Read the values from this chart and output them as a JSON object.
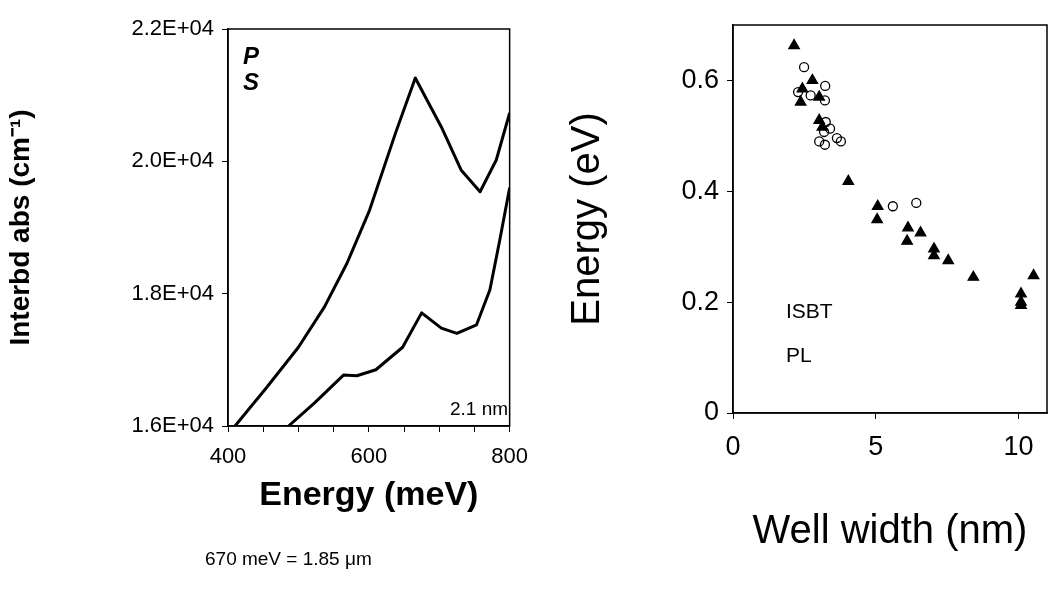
{
  "chart_data": [
    {
      "type": "line",
      "xlabel": "Energy (meV)",
      "ylabel": "Interbd abs (cm⁻¹)",
      "xlim": [
        400,
        800
      ],
      "ylim": [
        16000,
        22000
      ],
      "xticks": [
        400,
        {
          "value": 450,
          "label": null
        },
        {
          "value": 500,
          "label": null
        },
        {
          "value": 550,
          "label": null
        },
        600,
        {
          "value": 650,
          "label": null
        },
        {
          "value": 700,
          "label": null
        },
        {
          "value": 750,
          "label": null
        },
        800
      ],
      "yticks": [
        {
          "value": 16000,
          "label": "1.6E+04"
        },
        {
          "value": 18000,
          "label": "1.8E+04"
        },
        {
          "value": 20000,
          "label": "2.0E+04"
        },
        {
          "value": 22000,
          "label": "2.2E+04"
        }
      ],
      "grid": false,
      "legend": false,
      "marker": "none",
      "line_style": "solid",
      "annotations": [
        "P",
        "S",
        "2.1 nm",
        "670 meV = 1.85 μm"
      ],
      "series": [
        {
          "color": "#000000",
          "x": [
            410,
            454,
            500,
            537,
            569,
            601,
            638,
            666,
            703,
            731,
            758,
            781,
            800
          ],
          "values": [
            16000,
            16570,
            17190,
            17800,
            18460,
            19260,
            20430,
            21260,
            20520,
            19870,
            19540,
            20020,
            20730
          ]
        },
        {
          "color": "#000000",
          "x": [
            486,
            523,
            564,
            583,
            610,
            648,
            675,
            703,
            725,
            753,
            772,
            786,
            800
          ],
          "values": [
            16000,
            16350,
            16770,
            16760,
            16850,
            17190,
            17710,
            17480,
            17400,
            17530,
            18060,
            18810,
            19600
          ]
        }
      ]
    },
    {
      "type": "scatter",
      "xlabel": "Well width (nm)",
      "ylabel": "Energy (eV)",
      "xlim": [
        0,
        11
      ],
      "ylim": [
        0,
        0.7
      ],
      "xticks": [
        0,
        5,
        10
      ],
      "yticks": [
        0,
        0.2,
        0.4,
        0.6
      ],
      "grid": false,
      "legend": false,
      "annotations": [
        "ISBT",
        "PL"
      ],
      "series": [
        {
          "color": "#000000",
          "marker": "triangle",
          "x": [
            2.14,
            2.78,
            2.43,
            2.37,
            3.02,
            3.02,
            3.13,
            4.04,
            5.07,
            5.05,
            6.13,
            6.1,
            6.57,
            7.04,
            7.04,
            7.54,
            8.42,
            10.09,
            10.09,
            10.09,
            10.53
          ],
          "values": [
            0.663,
            0.6,
            0.585,
            0.561,
            0.57,
            0.528,
            0.516,
            0.418,
            0.373,
            0.349,
            0.334,
            0.31,
            0.325,
            0.296,
            0.284,
            0.275,
            0.245,
            0.215,
            0.2,
            0.194,
            0.248
          ]
        },
        {
          "color": "#000000",
          "marker": "circle",
          "x": [
            2.49,
            2.28,
            2.72,
            3.23,
            3.22,
            3.25,
            3.4,
            3.19,
            3.02,
            3.22,
            3.64,
            3.78,
            5.6,
            6.42
          ],
          "values": [
            0.624,
            0.579,
            0.573,
            0.59,
            0.564,
            0.525,
            0.513,
            0.507,
            0.49,
            0.484,
            0.496,
            0.49,
            0.373,
            0.379
          ]
        }
      ]
    }
  ]
}
